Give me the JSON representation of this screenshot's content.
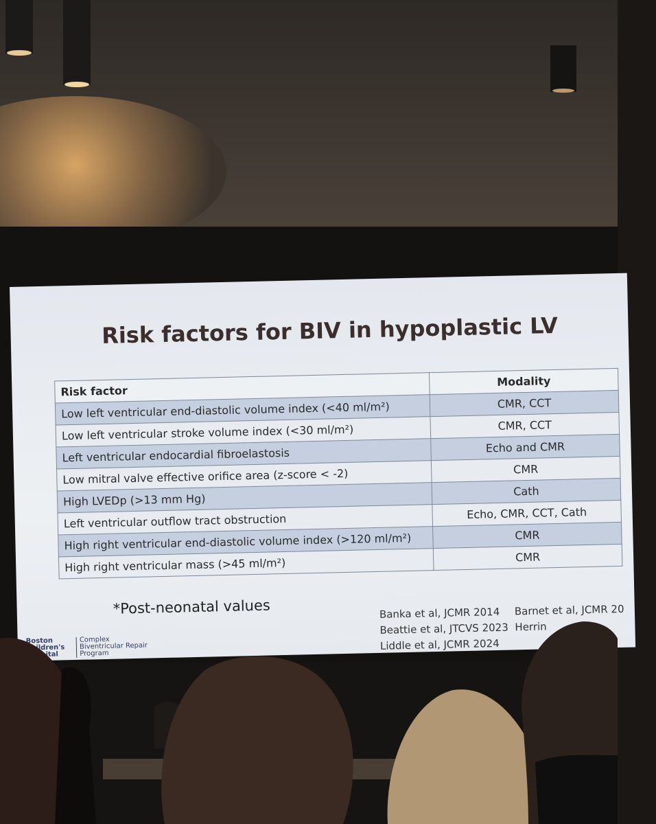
{
  "slide": {
    "title": "Risk factors for BIV in hypoplastic LV",
    "table": {
      "header": [
        "Risk factor",
        "Modality"
      ],
      "rows": [
        [
          "Low left ventricular end-diastolic volume index (<40 ml/m²)",
          "CMR, CCT"
        ],
        [
          "Low left ventricular stroke volume index (<30 ml/m²)",
          "CMR, CCT"
        ],
        [
          "Left ventricular endocardial fibroelastosis",
          "Echo and CMR"
        ],
        [
          "Low mitral valve effective orifice area (z-score < -2)",
          "CMR"
        ],
        [
          "High LVEDp (>13 mm Hg)",
          "Cath"
        ],
        [
          "Left ventricular outflow tract obstruction",
          "Echo, CMR, CCT, Cath"
        ],
        [
          "High right ventricular end-diastolic volume index (>120 ml/m²)",
          "CMR"
        ],
        [
          "High right ventricular mass (>45 ml/m²)",
          "CMR"
        ]
      ]
    },
    "footnote": "*Post-neonatal values",
    "references": [
      "Banka et al, JCMR 2014",
      "Beattie et al, JTCVS 2023",
      "Liddle et al, JCMR 2024",
      "Barnet et al, JCMR 20",
      "Herrin"
    ],
    "logo": {
      "institution": "Boston Children's Hospital",
      "program": "Complex Biventricular Repair Program"
    }
  }
}
